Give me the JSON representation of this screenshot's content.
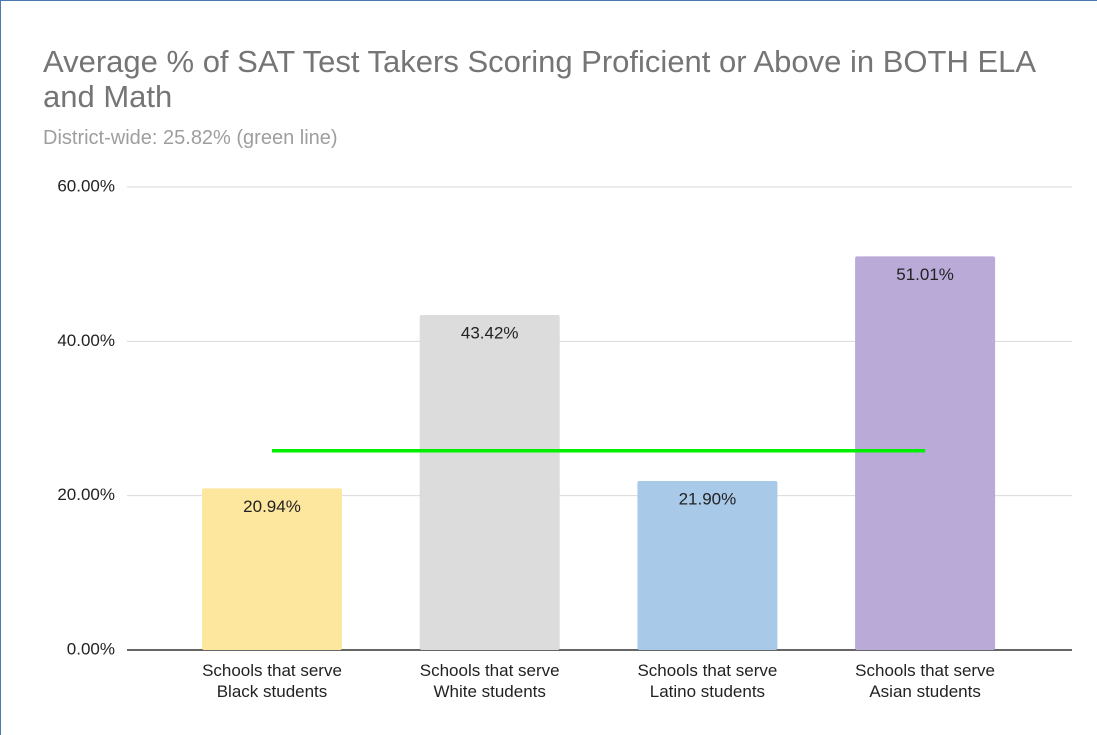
{
  "chart_data": {
    "type": "bar",
    "title": "Average % of SAT Test Takers Scoring Proficient or Above in BOTH ELA and Math",
    "subtitle": "District-wide: 25.82% (green line)",
    "categories": [
      "Schools that serve Black students",
      "Schools that serve White students",
      "Schools that serve Latino students",
      "Schools that serve Asian students"
    ],
    "values": [
      20.94,
      43.42,
      21.9,
      51.01
    ],
    "value_labels": [
      "20.94%",
      "43.42%",
      "21.90%",
      "51.01%"
    ],
    "colors": [
      "#fde69e",
      "#dcdcdc",
      "#a9c9e8",
      "#b9aad8"
    ],
    "ylim": [
      0,
      60
    ],
    "yticks": [
      {
        "value": 0,
        "label": "0.00%"
      },
      {
        "value": 20,
        "label": "20.00%"
      },
      {
        "value": 40,
        "label": "40.00%"
      },
      {
        "value": 60,
        "label": "60.00%"
      }
    ],
    "grid": true,
    "reference_line": {
      "value": 25.82,
      "color": "#00ee00"
    }
  }
}
